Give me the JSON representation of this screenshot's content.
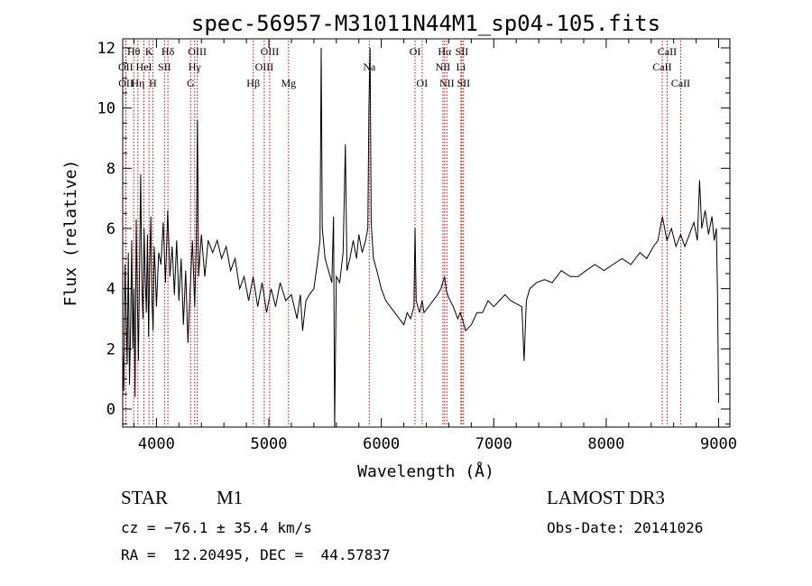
{
  "chart_data": {
    "type": "line",
    "title": "spec-56957-M31011N44M1_sp04-105.fits",
    "xlabel": "Wavelength (Å)",
    "ylabel": "Flux (relative)",
    "xlim": [
      3700,
      9100
    ],
    "ylim": [
      -0.6,
      12.3
    ],
    "xticks": [
      4000,
      5000,
      6000,
      7000,
      8000,
      9000
    ],
    "yticks": [
      0,
      2,
      4,
      6,
      8,
      10,
      12
    ],
    "line_color": "#000000",
    "marker_color": "#cc0000",
    "series": [
      {
        "points": [
          [
            3700,
            2.0
          ],
          [
            3710,
            0.6
          ],
          [
            3720,
            4.8
          ],
          [
            3730,
            3.2
          ],
          [
            3740,
            1.5
          ],
          [
            3750,
            5.2
          ],
          [
            3760,
            0.8
          ],
          [
            3770,
            2.6
          ],
          [
            3780,
            5.6
          ],
          [
            3790,
            2.0
          ],
          [
            3800,
            4.0
          ],
          [
            3810,
            0.4
          ],
          [
            3820,
            6.3
          ],
          [
            3830,
            3.8
          ],
          [
            3840,
            1.6
          ],
          [
            3850,
            4.8
          ],
          [
            3860,
            7.8
          ],
          [
            3870,
            4.2
          ],
          [
            3880,
            3.0
          ],
          [
            3890,
            6.0
          ],
          [
            3900,
            4.4
          ],
          [
            3910,
            3.2
          ],
          [
            3920,
            5.8
          ],
          [
            3930,
            2.4
          ],
          [
            3940,
            4.8
          ],
          [
            3950,
            6.4
          ],
          [
            3960,
            3.6
          ],
          [
            3970,
            2.6
          ],
          [
            3980,
            5.4
          ],
          [
            3990,
            4.6
          ],
          [
            4000,
            3.4
          ],
          [
            4020,
            5.2
          ],
          [
            4040,
            4.8
          ],
          [
            4060,
            6.2
          ],
          [
            4080,
            4.2
          ],
          [
            4100,
            6.6
          ],
          [
            4120,
            4.4
          ],
          [
            4140,
            5.4
          ],
          [
            4160,
            3.8
          ],
          [
            4180,
            5.6
          ],
          [
            4200,
            3.6
          ],
          [
            4220,
            5.0
          ],
          [
            4240,
            2.8
          ],
          [
            4260,
            4.6
          ],
          [
            4280,
            2.2
          ],
          [
            4300,
            4.0
          ],
          [
            4320,
            5.6
          ],
          [
            4340,
            3.4
          ],
          [
            4355,
            5.6
          ],
          [
            4365,
            9.6
          ],
          [
            4375,
            4.4
          ],
          [
            4400,
            5.8
          ],
          [
            4430,
            4.4
          ],
          [
            4460,
            5.6
          ],
          [
            4500,
            5.2
          ],
          [
            4540,
            5.6
          ],
          [
            4580,
            5.0
          ],
          [
            4620,
            5.4
          ],
          [
            4660,
            4.6
          ],
          [
            4700,
            5.0
          ],
          [
            4740,
            4.0
          ],
          [
            4780,
            4.4
          ],
          [
            4820,
            3.6
          ],
          [
            4860,
            4.4
          ],
          [
            4900,
            3.4
          ],
          [
            4940,
            4.2
          ],
          [
            4980,
            3.2
          ],
          [
            5020,
            4.0
          ],
          [
            5060,
            3.4
          ],
          [
            5100,
            4.2
          ],
          [
            5150,
            3.6
          ],
          [
            5200,
            3.8
          ],
          [
            5250,
            3.0
          ],
          [
            5280,
            3.8
          ],
          [
            5300,
            2.6
          ],
          [
            5330,
            3.6
          ],
          [
            5360,
            3.8
          ],
          [
            5400,
            4.0
          ],
          [
            5430,
            4.8
          ],
          [
            5455,
            5.6
          ],
          [
            5465,
            12.0
          ],
          [
            5475,
            6.0
          ],
          [
            5500,
            5.0
          ],
          [
            5530,
            4.6
          ],
          [
            5560,
            4.2
          ],
          [
            5575,
            6.4
          ],
          [
            5585,
            -0.6
          ],
          [
            5600,
            4.4
          ],
          [
            5630,
            4.2
          ],
          [
            5660,
            5.2
          ],
          [
            5680,
            8.8
          ],
          [
            5695,
            4.6
          ],
          [
            5720,
            5.0
          ],
          [
            5750,
            5.6
          ],
          [
            5780,
            5.0
          ],
          [
            5800,
            5.8
          ],
          [
            5830,
            5.2
          ],
          [
            5860,
            5.6
          ],
          [
            5880,
            6.0
          ],
          [
            5890,
            10.0
          ],
          [
            5900,
            12.0
          ],
          [
            5910,
            6.2
          ],
          [
            5930,
            5.0
          ],
          [
            5960,
            4.6
          ],
          [
            6000,
            4.0
          ],
          [
            6040,
            3.6
          ],
          [
            6080,
            3.4
          ],
          [
            6120,
            3.2
          ],
          [
            6160,
            3.0
          ],
          [
            6200,
            2.8
          ],
          [
            6230,
            3.2
          ],
          [
            6260,
            3.0
          ],
          [
            6290,
            3.4
          ],
          [
            6300,
            6.0
          ],
          [
            6310,
            3.6
          ],
          [
            6340,
            3.2
          ],
          [
            6363,
            3.6
          ],
          [
            6380,
            3.2
          ],
          [
            6420,
            3.4
          ],
          [
            6460,
            3.6
          ],
          [
            6500,
            3.8
          ],
          [
            6530,
            4.0
          ],
          [
            6563,
            4.4
          ],
          [
            6580,
            3.9
          ],
          [
            6600,
            3.7
          ],
          [
            6640,
            3.4
          ],
          [
            6680,
            3.0
          ],
          [
            6700,
            3.2
          ],
          [
            6720,
            3.0
          ],
          [
            6750,
            2.6
          ],
          [
            6800,
            2.8
          ],
          [
            6850,
            3.2
          ],
          [
            6900,
            3.2
          ],
          [
            6950,
            3.6
          ],
          [
            7000,
            3.4
          ],
          [
            7050,
            3.6
          ],
          [
            7100,
            3.8
          ],
          [
            7150,
            3.6
          ],
          [
            7200,
            3.5
          ],
          [
            7250,
            3.4
          ],
          [
            7270,
            1.6
          ],
          [
            7290,
            3.6
          ],
          [
            7320,
            4.0
          ],
          [
            7380,
            4.2
          ],
          [
            7450,
            4.3
          ],
          [
            7520,
            4.2
          ],
          [
            7600,
            4.6
          ],
          [
            7680,
            4.4
          ],
          [
            7750,
            4.4
          ],
          [
            7820,
            4.6
          ],
          [
            7900,
            4.8
          ],
          [
            7980,
            4.6
          ],
          [
            8060,
            4.8
          ],
          [
            8140,
            5.0
          ],
          [
            8220,
            4.8
          ],
          [
            8300,
            5.2
          ],
          [
            8360,
            5.0
          ],
          [
            8420,
            5.4
          ],
          [
            8460,
            5.6
          ],
          [
            8500,
            6.4
          ],
          [
            8540,
            5.6
          ],
          [
            8580,
            6.0
          ],
          [
            8620,
            5.4
          ],
          [
            8662,
            5.8
          ],
          [
            8700,
            5.4
          ],
          [
            8740,
            5.8
          ],
          [
            8780,
            6.2
          ],
          [
            8810,
            5.6
          ],
          [
            8830,
            7.6
          ],
          [
            8850,
            6.0
          ],
          [
            8880,
            6.6
          ],
          [
            8910,
            5.8
          ],
          [
            8940,
            6.4
          ],
          [
            8960,
            5.6
          ],
          [
            8980,
            6.0
          ],
          [
            8990,
            3.8
          ],
          [
            9000,
            0.2
          ]
        ]
      }
    ],
    "line_markers": [
      {
        "label": "Hθ",
        "wavelength": 3798,
        "row": 0
      },
      {
        "label": "OII",
        "wavelength": 3727,
        "row": 1
      },
      {
        "label": "OII",
        "wavelength": 3729,
        "row": 2
      },
      {
        "label": "K",
        "wavelength": 3934,
        "row": 0
      },
      {
        "label": "HeI",
        "wavelength": 3889,
        "row": 1
      },
      {
        "label": "Hη",
        "wavelength": 3835,
        "row": 2
      },
      {
        "label": "Hδ",
        "wavelength": 4102,
        "row": 0
      },
      {
        "label": "SII",
        "wavelength": 4072,
        "row": 1
      },
      {
        "label": "H",
        "wavelength": 3968,
        "row": 2
      },
      {
        "label": "OIII",
        "wavelength": 4363,
        "row": 0
      },
      {
        "label": "Hγ",
        "wavelength": 4340,
        "row": 1
      },
      {
        "label": "G",
        "wavelength": 4304,
        "row": 2
      },
      {
        "label": "OIII",
        "wavelength": 5007,
        "row": 0
      },
      {
        "label": "OIII",
        "wavelength": 4959,
        "row": 1
      },
      {
        "label": "Hβ",
        "wavelength": 4861,
        "row": 2
      },
      {
        "label": "Mg",
        "wavelength": 5175,
        "row": 2
      },
      {
        "label": "Na",
        "wavelength": 5893,
        "row": 1
      },
      {
        "label": "OI",
        "wavelength": 6300,
        "row": 0
      },
      {
        "label": "OI",
        "wavelength": 6363,
        "row": 2
      },
      {
        "label": "Hα",
        "wavelength": 6563,
        "row": 0
      },
      {
        "label": "NII",
        "wavelength": 6548,
        "row": 1
      },
      {
        "label": "NII",
        "wavelength": 6583,
        "row": 2
      },
      {
        "label": "SII",
        "wavelength": 6716,
        "row": 0
      },
      {
        "label": "Li",
        "wavelength": 6708,
        "row": 1
      },
      {
        "label": "SII",
        "wavelength": 6731,
        "row": 2
      },
      {
        "label": "CaII",
        "wavelength": 8542,
        "row": 0
      },
      {
        "label": "CaII",
        "wavelength": 8498,
        "row": 1
      },
      {
        "label": "CaII",
        "wavelength": 8662,
        "row": 2
      }
    ]
  },
  "info": {
    "class": "STAR",
    "subclass": "M1",
    "survey": "LAMOST DR3",
    "cz": "cz = −76.1 ± 35.4 km/s",
    "obs_date": "Obs-Date: 20141026",
    "coords": "RA =  12.20495, DEC =  44.57837"
  }
}
